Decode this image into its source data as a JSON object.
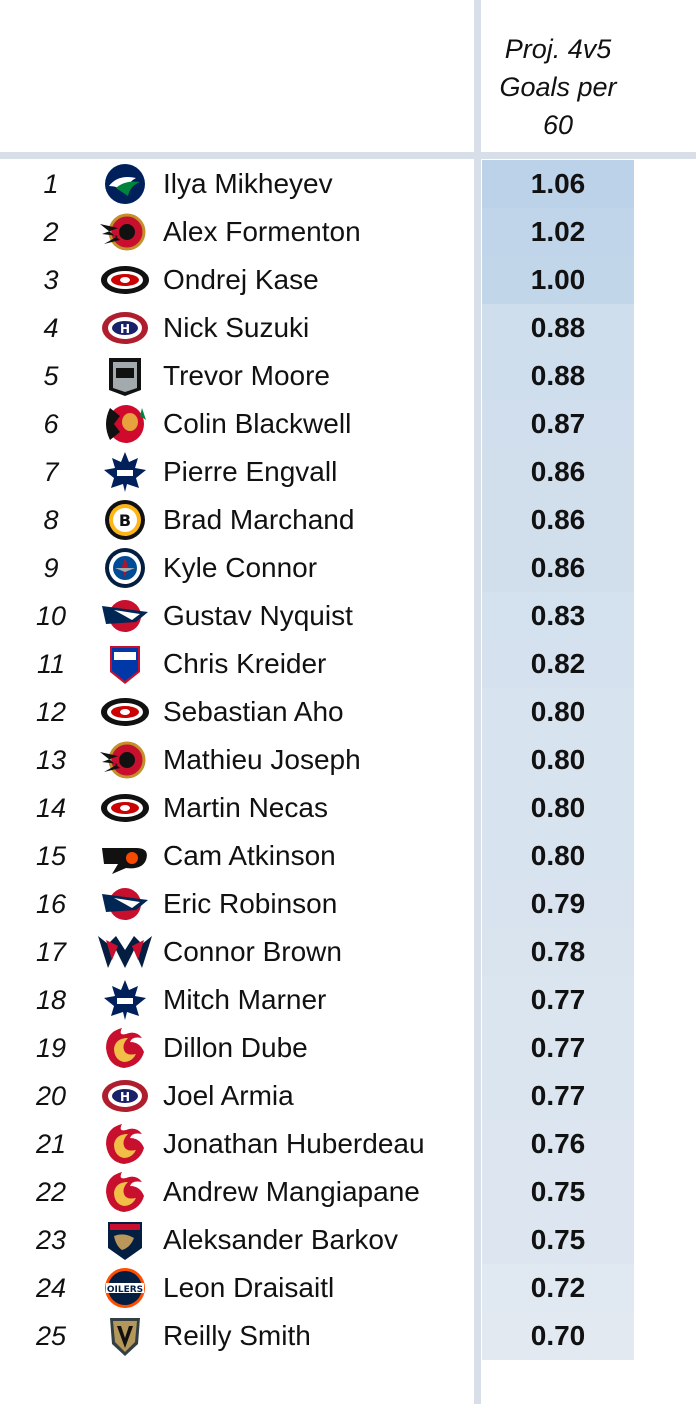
{
  "chart_data": {
    "type": "table",
    "columns": [
      "",
      "",
      "",
      "Proj. 4v5 Goals per 60"
    ],
    "header_lines": [
      "Proj. 4v5",
      "Goals per",
      "60"
    ],
    "rows": [
      {
        "rank": "1",
        "team_icon": "canucks-logo",
        "player": "Ilya Mikheyev",
        "value": "1.06",
        "value_num": 1.06
      },
      {
        "rank": "2",
        "team_icon": "senators-logo",
        "player": "Alex Formenton",
        "value": "1.02",
        "value_num": 1.02
      },
      {
        "rank": "3",
        "team_icon": "hurricanes-logo",
        "player": "Ondrej Kase",
        "value": "1.00",
        "value_num": 1.0
      },
      {
        "rank": "4",
        "team_icon": "canadiens-logo",
        "player": "Nick Suzuki",
        "value": "0.88",
        "value_num": 0.88
      },
      {
        "rank": "5",
        "team_icon": "kings-logo",
        "player": "Trevor Moore",
        "value": "0.88",
        "value_num": 0.88
      },
      {
        "rank": "6",
        "team_icon": "blackhawks-logo",
        "player": "Colin Blackwell",
        "value": "0.87",
        "value_num": 0.87
      },
      {
        "rank": "7",
        "team_icon": "maple-leafs-logo",
        "player": "Pierre Engvall",
        "value": "0.86",
        "value_num": 0.86
      },
      {
        "rank": "8",
        "team_icon": "bruins-logo",
        "player": "Brad Marchand",
        "value": "0.86",
        "value_num": 0.86
      },
      {
        "rank": "9",
        "team_icon": "jets-logo",
        "player": "Kyle Connor",
        "value": "0.86",
        "value_num": 0.86
      },
      {
        "rank": "10",
        "team_icon": "blue-jackets-logo",
        "player": "Gustav Nyquist",
        "value": "0.83",
        "value_num": 0.83
      },
      {
        "rank": "11",
        "team_icon": "rangers-logo",
        "player": "Chris Kreider",
        "value": "0.82",
        "value_num": 0.82
      },
      {
        "rank": "12",
        "team_icon": "hurricanes-logo",
        "player": "Sebastian Aho",
        "value": "0.80",
        "value_num": 0.8
      },
      {
        "rank": "13",
        "team_icon": "senators-logo",
        "player": "Mathieu Joseph",
        "value": "0.80",
        "value_num": 0.8
      },
      {
        "rank": "14",
        "team_icon": "hurricanes-logo",
        "player": "Martin Necas",
        "value": "0.80",
        "value_num": 0.8
      },
      {
        "rank": "15",
        "team_icon": "flyers-logo",
        "player": "Cam Atkinson",
        "value": "0.80",
        "value_num": 0.8
      },
      {
        "rank": "16",
        "team_icon": "blue-jackets-logo",
        "player": "Eric Robinson",
        "value": "0.79",
        "value_num": 0.79
      },
      {
        "rank": "17",
        "team_icon": "capitals-logo",
        "player": "Connor Brown",
        "value": "0.78",
        "value_num": 0.78
      },
      {
        "rank": "18",
        "team_icon": "maple-leafs-logo",
        "player": "Mitch Marner",
        "value": "0.77",
        "value_num": 0.77
      },
      {
        "rank": "19",
        "team_icon": "flames-logo",
        "player": "Dillon Dube",
        "value": "0.77",
        "value_num": 0.77
      },
      {
        "rank": "20",
        "team_icon": "canadiens-logo",
        "player": "Joel Armia",
        "value": "0.77",
        "value_num": 0.77
      },
      {
        "rank": "21",
        "team_icon": "flames-logo",
        "player": "Jonathan Huberdeau",
        "value": "0.76",
        "value_num": 0.76
      },
      {
        "rank": "22",
        "team_icon": "flames-logo",
        "player": "Andrew Mangiapane",
        "value": "0.75",
        "value_num": 0.75
      },
      {
        "rank": "23",
        "team_icon": "panthers-logo",
        "player": "Aleksander Barkov",
        "value": "0.75",
        "value_num": 0.75
      },
      {
        "rank": "24",
        "team_icon": "oilers-logo",
        "player": "Leon Draisaitl",
        "value": "0.72",
        "value_num": 0.72
      },
      {
        "rank": "25",
        "team_icon": "golden-knights-logo",
        "player": "Reilly Smith",
        "value": "0.70",
        "value_num": 0.7
      }
    ],
    "heat_colors": {
      "high": "#bcd2e8",
      "low": "#e2e9f1"
    }
  }
}
